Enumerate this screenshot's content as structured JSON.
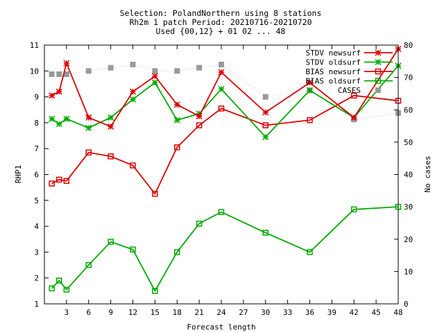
{
  "chart_data": {
    "type": "line",
    "title_lines": [
      "Selection: PolandNorthern using     8 stations",
      "Rh2m 1 patch   Period: 20210716-20210720",
      "Used {00,12} + 01 02 ... 48"
    ],
    "xlabel": "Forecast length",
    "ylabel": "RHP1",
    "y2label": "No cases",
    "xlim": [
      0,
      48
    ],
    "ylim": [
      1,
      11
    ],
    "y2lim": [
      0,
      80
    ],
    "xticks": [
      3,
      6,
      9,
      12,
      15,
      18,
      21,
      24,
      27,
      30,
      33,
      36,
      39,
      42,
      45,
      48
    ],
    "yticks": [
      1,
      2,
      3,
      4,
      5,
      6,
      7,
      8,
      9,
      10,
      11
    ],
    "y2ticks": [
      0,
      10,
      20,
      30,
      40,
      50,
      60,
      70,
      80
    ],
    "legend_position": "top-right",
    "series": [
      {
        "name": "STDV newsurf",
        "color": "#dd0000",
        "marker": "star",
        "axis": "y",
        "x": [
          1,
          2,
          3,
          6,
          9,
          12,
          15,
          18,
          21,
          24,
          30,
          36,
          42,
          48
        ],
        "values": [
          9.05,
          9.2,
          10.3,
          8.2,
          7.85,
          9.2,
          9.8,
          8.7,
          8.25,
          9.95,
          8.4,
          9.55,
          8.2,
          10.85
        ]
      },
      {
        "name": "STDV oldsurf",
        "color": "#00aa00",
        "marker": "star",
        "axis": "y",
        "x": [
          1,
          2,
          3,
          6,
          9,
          12,
          15,
          18,
          21,
          24,
          30,
          36,
          42,
          48
        ],
        "values": [
          8.15,
          7.95,
          8.15,
          7.8,
          8.2,
          8.9,
          9.55,
          8.1,
          8.35,
          9.3,
          7.45,
          9.25,
          8.2,
          10.2
        ]
      },
      {
        "name": "BIAS newsurf",
        "color": "#dd0000",
        "marker": "square",
        "axis": "y",
        "x": [
          1,
          2,
          3,
          6,
          9,
          12,
          15,
          18,
          21,
          24,
          30,
          36,
          42,
          48
        ],
        "values": [
          5.65,
          5.8,
          5.75,
          6.85,
          6.7,
          6.35,
          5.25,
          7.05,
          7.9,
          8.55,
          7.9,
          8.1,
          9.05,
          8.85
        ]
      },
      {
        "name": "BIAS oldsurf",
        "color": "#00aa00",
        "marker": "square",
        "axis": "y",
        "x": [
          1,
          2,
          3,
          6,
          9,
          12,
          15,
          18,
          21,
          24,
          30,
          36,
          42,
          48
        ],
        "values": [
          1.6,
          1.9,
          1.55,
          2.5,
          3.4,
          3.1,
          1.5,
          3.0,
          4.1,
          4.55,
          3.75,
          3.0,
          4.65,
          4.75
        ]
      },
      {
        "name": "CASES",
        "color": "#999999",
        "marker": "filled-square",
        "axis": "y2",
        "dotted": true,
        "x": [
          1,
          2,
          3,
          6,
          9,
          12,
          15,
          18,
          21,
          24,
          30,
          36,
          42,
          48
        ],
        "values": [
          71,
          71,
          71,
          72,
          73,
          74,
          72,
          72,
          73,
          74,
          64,
          66,
          57,
          59
        ]
      }
    ]
  }
}
